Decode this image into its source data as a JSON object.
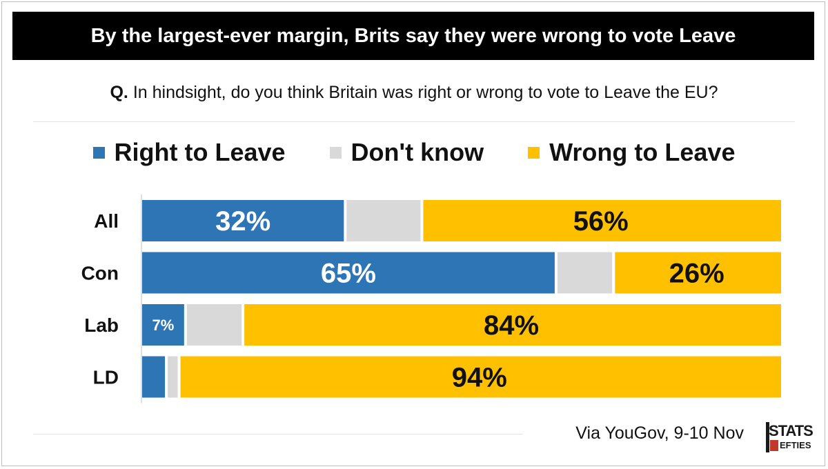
{
  "title": "By the largest-ever margin, Brits say they were wrong to vote Leave",
  "question": {
    "prefix": "Q.",
    "text": "In hindsight, do you think Britain was right or wrong to vote to Leave the EU?"
  },
  "footer": {
    "source": "Via YouGov, 9-10 Nov",
    "logo_text_top": "STATS",
    "logo_text_bottom": "EFTIES"
  },
  "colors": {
    "right": "#2e75b6",
    "dontknow": "#d9d9d9",
    "wrong": "#ffc000"
  },
  "chart_data": {
    "type": "bar",
    "orientation": "horizontal-stacked",
    "categories": [
      "All",
      "Con",
      "Lab",
      "LD"
    ],
    "series": [
      {
        "name": "Right to Leave",
        "values": [
          32,
          65,
          7,
          4
        ],
        "labels": [
          "32%",
          "65%",
          "7%",
          ""
        ]
      },
      {
        "name": "Don't know",
        "values": [
          12,
          9,
          9,
          2
        ],
        "labels": [
          "",
          "",
          "",
          ""
        ]
      },
      {
        "name": "Wrong to Leave",
        "values": [
          56,
          26,
          84,
          94
        ],
        "labels": [
          "56%",
          "26%",
          "84%",
          "94%"
        ]
      }
    ],
    "xlim": [
      0,
      100
    ],
    "legend_position": "top",
    "grid": false
  }
}
